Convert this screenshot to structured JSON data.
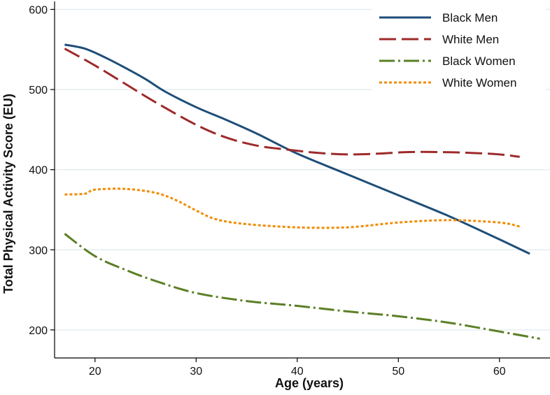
{
  "chart_data": {
    "type": "line",
    "title": "",
    "xlabel": "Age (years)",
    "ylabel": "Total Physical Activity Score (EU)",
    "xlim": [
      16,
      65
    ],
    "ylim": [
      165,
      610
    ],
    "xticks": [
      20,
      30,
      40,
      50,
      60
    ],
    "yticks": [
      200,
      300,
      400,
      500,
      600
    ],
    "xtick_labels": [
      "20",
      "30",
      "40",
      "50",
      "60"
    ],
    "ytick_labels": [
      "200",
      "300",
      "400",
      "500",
      "600"
    ],
    "grid": true,
    "legend_position": "top-right",
    "series": [
      {
        "name": "Black Men",
        "color": "#1f4e79",
        "style": "solid",
        "x": [
          17,
          19,
          21,
          23,
          25,
          27,
          30,
          33,
          36,
          40,
          45,
          50,
          55,
          60,
          63
        ],
        "y": [
          556,
          551,
          540,
          527,
          513,
          497,
          478,
          462,
          445,
          420,
          394,
          368,
          342,
          313,
          295
        ]
      },
      {
        "name": "White Men",
        "color": "#9e2a2b",
        "style": "dash",
        "x": [
          17,
          20,
          23,
          26,
          30,
          33,
          36,
          39,
          42,
          45,
          48,
          51,
          54,
          57,
          60,
          62
        ],
        "y": [
          551,
          530,
          507,
          484,
          456,
          440,
          430,
          425,
          421,
          419,
          420,
          422,
          422,
          421,
          419,
          416
        ]
      },
      {
        "name": "Black Women",
        "color": "#5b7f24",
        "style": "dashdot",
        "x": [
          17,
          20,
          23,
          26,
          30,
          35,
          40,
          45,
          50,
          55,
          60,
          64
        ],
        "y": [
          320,
          292,
          275,
          261,
          246,
          236,
          230,
          223,
          217,
          209,
          198,
          189
        ]
      },
      {
        "name": "White Women",
        "color": "#f08c00",
        "style": "dot",
        "x": [
          17,
          19,
          20,
          23,
          26,
          28,
          30,
          32,
          35,
          40,
          45,
          50,
          55,
          60,
          62
        ],
        "y": [
          369,
          370,
          375,
          376,
          371,
          362,
          349,
          338,
          332,
          328,
          328,
          334,
          337,
          334,
          329
        ]
      }
    ]
  }
}
